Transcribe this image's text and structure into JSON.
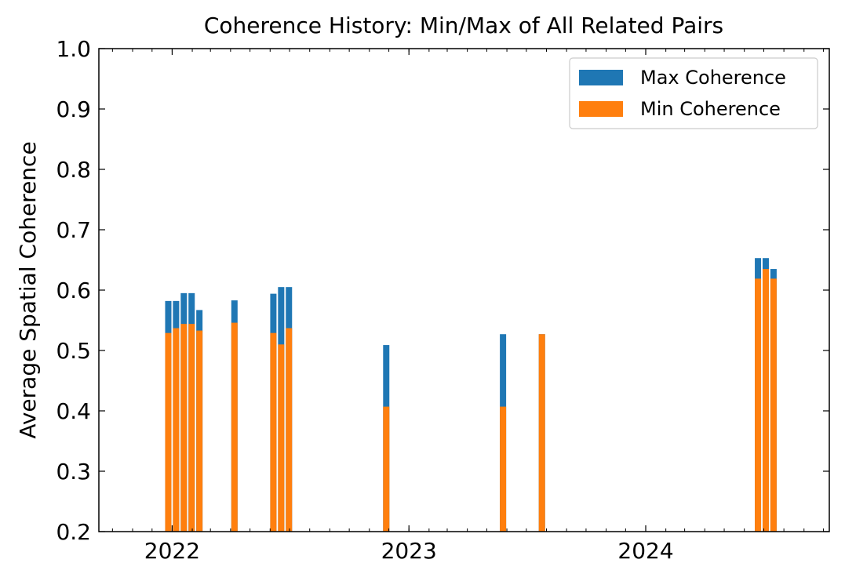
{
  "chart_data": {
    "type": "bar",
    "title": "Coherence History: Min/Max of All Related Pairs",
    "xlabel": "",
    "ylabel": "Average Spatial Coherence",
    "ylim": [
      0.2,
      1.0
    ],
    "xlim": [
      "2021-09-10",
      "2024-10-10"
    ],
    "yticks": [
      "0.2",
      "0.3",
      "0.4",
      "0.5",
      "0.6",
      "0.7",
      "0.8",
      "0.9",
      "1.0"
    ],
    "xticks": [
      {
        "label": "2022",
        "date": "2022-01-01"
      },
      {
        "label": "2023",
        "date": "2023-01-01"
      },
      {
        "label": "2024",
        "date": "2024-01-01"
      }
    ],
    "legend_position": "top-right",
    "grid": false,
    "series": [
      {
        "name": "Max Coherence",
        "color": "#1f77b4",
        "values": [
          0.582,
          0.582,
          0.595,
          0.595,
          0.567,
          0.583,
          0.594,
          0.605,
          0.605,
          0.509,
          0.527,
          0.527,
          0.653,
          0.653,
          0.635
        ]
      },
      {
        "name": "Min Coherence",
        "color": "#ff7f0e",
        "values": [
          0.529,
          0.537,
          0.544,
          0.544,
          0.533,
          0.546,
          0.529,
          0.51,
          0.537,
          0.407,
          0.407,
          0.527,
          0.619,
          0.635,
          0.619
        ]
      }
    ],
    "dates": [
      "2021-12-26",
      "2022-01-07",
      "2022-01-19",
      "2022-01-31",
      "2022-02-12",
      "2022-04-07",
      "2022-06-06",
      "2022-06-18",
      "2022-06-30",
      "2022-11-27",
      "2023-05-26",
      "2023-07-25",
      "2024-06-22",
      "2024-07-04",
      "2024-07-16"
    ]
  }
}
